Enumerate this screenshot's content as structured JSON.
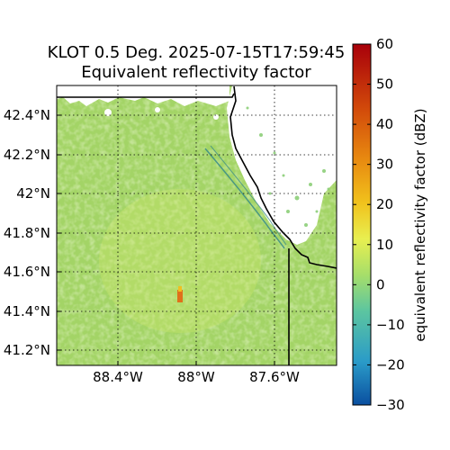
{
  "chart_data": {
    "type": "heatmap",
    "title_line1": "KLOT 0.5 Deg. 2025-07-15T17:59:45",
    "title_line2": "Equivalent reflectivity factor",
    "x_ticks": [
      "88.4°W",
      "88°W",
      "87.6°W"
    ],
    "y_ticks": [
      "42.4°N",
      "42.2°N",
      "42°N",
      "41.8°N",
      "41.6°N",
      "41.4°N",
      "41.2°N"
    ],
    "colorbar": {
      "label": "equivalent reflectivity factor (dBZ)",
      "min": -30,
      "max": 60,
      "ticks": [
        "60",
        "50",
        "40",
        "30",
        "20",
        "10",
        "0",
        "−10",
        "−20",
        "−30"
      ]
    },
    "grid": true,
    "colormap": [
      "#0a4fa0",
      "#2a9bc8",
      "#5cc5a0",
      "#a6de6a",
      "#e8ef50",
      "#f1c21c",
      "#e88a10",
      "#d24a0a",
      "#a8000a"
    ],
    "field_description_colors": {
      "dominant": "#9ccf5e",
      "light": "#bde27a",
      "deep": "#6db47a"
    }
  }
}
